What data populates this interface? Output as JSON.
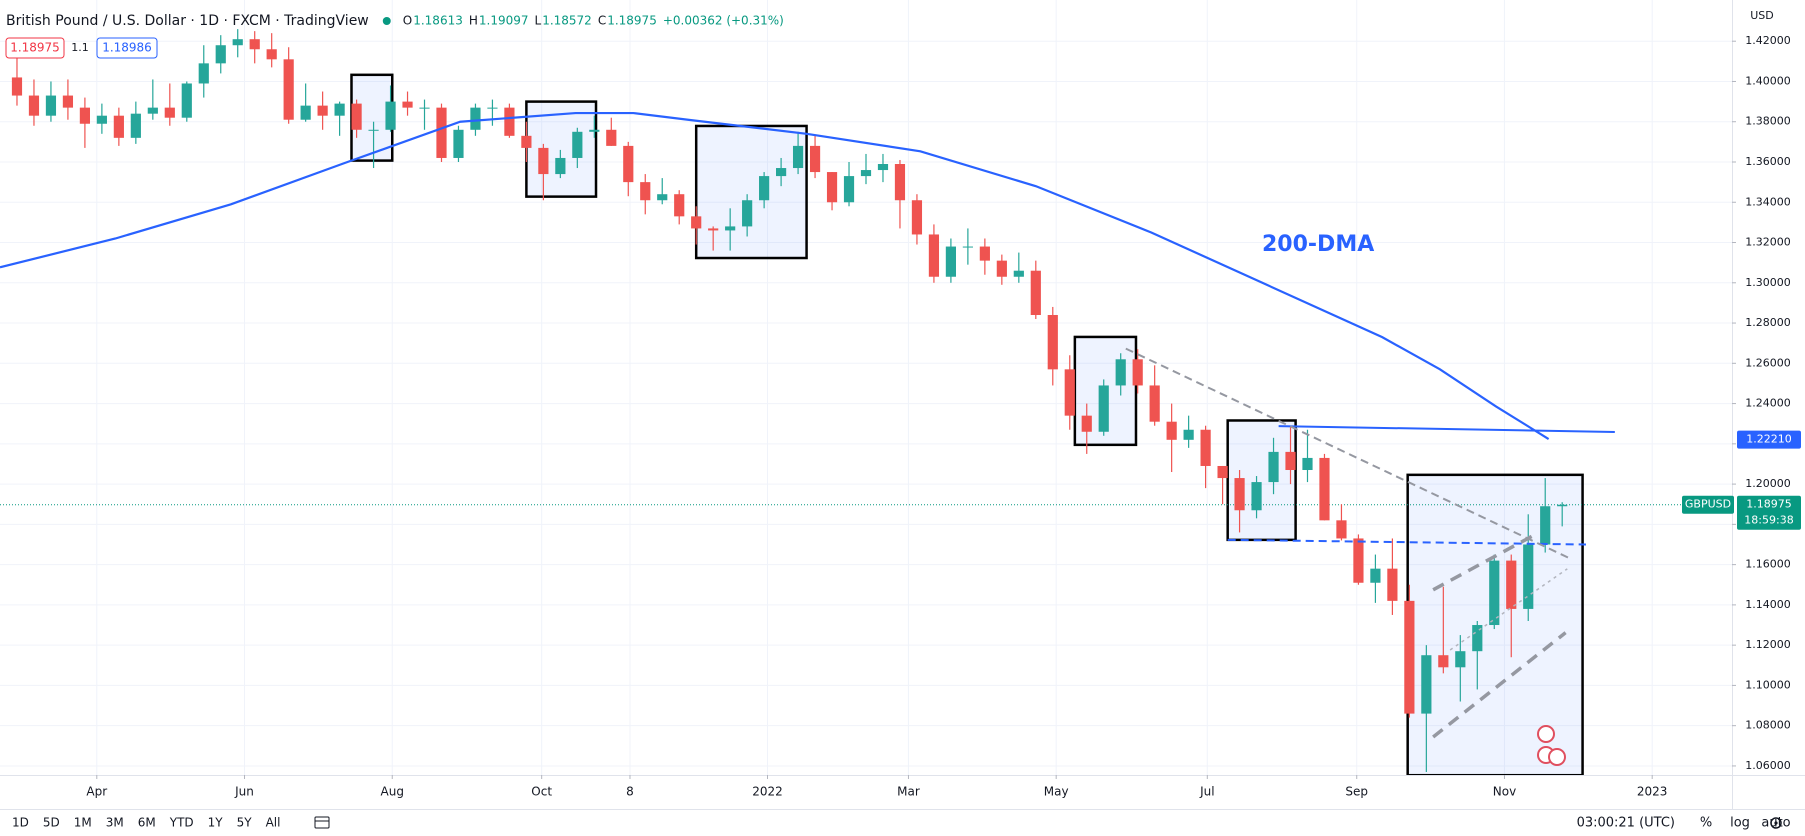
{
  "chart_data": {
    "type": "candlestick",
    "title": "British Pound / U.S. Dollar · 1D · FXCM · TradingView",
    "legend": {
      "open_label": "O",
      "open": 1.18613,
      "high_label": "H",
      "high": 1.19097,
      "low_label": "L",
      "low": 1.18572,
      "close_label": "C",
      "close": 1.18975,
      "change": "+0.00362 (+0.31%)"
    },
    "trade": {
      "sell": 1.18975,
      "spread": 1.1,
      "buy": 1.18986
    },
    "currency": "USD",
    "up_color": "#26a69a",
    "down_color": "#ef5350",
    "open": [
      1.402,
      1.393,
      1.383,
      1.393,
      1.387,
      1.379,
      1.383,
      1.372,
      1.384,
      1.387,
      1.382,
      1.399,
      1.409,
      1.418,
      1.421,
      1.416,
      1.411,
      1.381,
      1.388,
      1.383,
      1.389,
      1.376,
      1.376,
      1.39,
      1.387,
      1.387,
      1.362,
      1.376,
      1.387,
      1.387,
      1.373,
      1.367,
      1.354,
      1.362,
      1.375,
      1.376,
      1.368,
      1.35,
      1.341,
      1.344,
      1.333,
      1.327,
      1.326,
      1.328,
      1.341,
      1.353,
      1.357,
      1.368,
      1.355,
      1.34,
      1.353,
      1.356,
      1.359,
      1.341,
      1.324,
      1.303,
      1.318,
      1.318,
      1.311,
      1.303,
      1.306,
      1.284,
      1.257,
      1.234,
      1.226,
      1.249,
      1.262,
      1.249,
      1.231,
      1.222,
      1.227,
      1.209,
      1.203,
      1.187,
      1.201,
      1.216,
      1.207,
      1.213,
      1.182,
      1.173,
      1.151,
      1.158,
      1.142,
      1.086,
      1.115,
      1.109,
      1.117,
      1.13,
      1.162,
      1.138,
      1.17,
      1.189
    ],
    "high": [
      1.412,
      1.401,
      1.4,
      1.401,
      1.392,
      1.389,
      1.387,
      1.39,
      1.401,
      1.399,
      1.4,
      1.418,
      1.423,
      1.426,
      1.425,
      1.424,
      1.417,
      1.399,
      1.395,
      1.39,
      1.391,
      1.38,
      1.398,
      1.395,
      1.391,
      1.389,
      1.378,
      1.389,
      1.391,
      1.389,
      1.38,
      1.369,
      1.366,
      1.377,
      1.383,
      1.382,
      1.37,
      1.354,
      1.352,
      1.346,
      1.338,
      1.328,
      1.337,
      1.344,
      1.355,
      1.362,
      1.375,
      1.373,
      1.355,
      1.36,
      1.364,
      1.364,
      1.361,
      1.344,
      1.329,
      1.322,
      1.327,
      1.322,
      1.314,
      1.315,
      1.311,
      1.288,
      1.264,
      1.24,
      1.252,
      1.265,
      1.267,
      1.259,
      1.24,
      1.234,
      1.229,
      1.209,
      1.207,
      1.204,
      1.223,
      1.229,
      1.227,
      1.215,
      1.19,
      1.175,
      1.165,
      1.173,
      1.15,
      1.12,
      1.149,
      1.125,
      1.132,
      1.165,
      1.165,
      1.185,
      1.203,
      1.191
    ],
    "low": [
      1.388,
      1.378,
      1.38,
      1.381,
      1.367,
      1.374,
      1.368,
      1.369,
      1.381,
      1.378,
      1.38,
      1.392,
      1.404,
      1.412,
      1.409,
      1.407,
      1.379,
      1.38,
      1.376,
      1.373,
      1.372,
      1.357,
      1.375,
      1.383,
      1.376,
      1.36,
      1.36,
      1.373,
      1.378,
      1.372,
      1.36,
      1.341,
      1.352,
      1.357,
      1.372,
      1.368,
      1.343,
      1.334,
      1.339,
      1.329,
      1.319,
      1.316,
      1.316,
      1.323,
      1.337,
      1.348,
      1.354,
      1.352,
      1.336,
      1.338,
      1.349,
      1.35,
      1.327,
      1.319,
      1.3,
      1.3,
      1.309,
      1.304,
      1.299,
      1.3,
      1.282,
      1.249,
      1.227,
      1.215,
      1.224,
      1.244,
      1.245,
      1.229,
      1.206,
      1.218,
      1.198,
      1.19,
      1.176,
      1.183,
      1.195,
      1.2,
      1.201,
      1.182,
      1.172,
      1.15,
      1.141,
      1.135,
      1.084,
      1.057,
      1.106,
      1.092,
      1.098,
      1.128,
      1.114,
      1.132,
      1.166,
      1.179
    ],
    "close": [
      1.393,
      1.383,
      1.393,
      1.387,
      1.379,
      1.383,
      1.372,
      1.384,
      1.387,
      1.382,
      1.399,
      1.409,
      1.418,
      1.421,
      1.416,
      1.411,
      1.381,
      1.388,
      1.383,
      1.389,
      1.376,
      1.376,
      1.39,
      1.387,
      1.387,
      1.362,
      1.376,
      1.387,
      1.387,
      1.373,
      1.367,
      1.354,
      1.362,
      1.375,
      1.376,
      1.368,
      1.35,
      1.341,
      1.344,
      1.333,
      1.327,
      1.326,
      1.328,
      1.341,
      1.353,
      1.357,
      1.368,
      1.355,
      1.34,
      1.353,
      1.356,
      1.359,
      1.341,
      1.324,
      1.303,
      1.318,
      1.318,
      1.311,
      1.303,
      1.306,
      1.284,
      1.257,
      1.234,
      1.226,
      1.249,
      1.262,
      1.249,
      1.231,
      1.222,
      1.227,
      1.209,
      1.203,
      1.187,
      1.201,
      1.216,
      1.207,
      1.213,
      1.182,
      1.173,
      1.151,
      1.158,
      1.142,
      1.086,
      1.115,
      1.109,
      1.117,
      1.13,
      1.162,
      1.138,
      1.17,
      1.189,
      1.18975
    ],
    "ma": {
      "color": "#2962ff",
      "x": [
        -1,
        5.8,
        12.6,
        19.3,
        26.1,
        32.9,
        36.3,
        39.7,
        46.5,
        53.2,
        60.0,
        66.8,
        73.6,
        80.4,
        83.8,
        87.1,
        90.2
      ],
      "values": [
        1.3077,
        1.322,
        1.339,
        1.3595,
        1.38,
        1.3843,
        1.3843,
        1.3808,
        1.374,
        1.3653,
        1.348,
        1.325,
        1.299,
        1.273,
        1.257,
        1.2386,
        1.2224
      ]
    },
    "annotation": "200-DMA",
    "boxes": [
      {
        "x": [
          19.7,
          22.1
        ],
        "y": [
          1.3607,
          1.4033
        ]
      },
      {
        "x": [
          30.0,
          34.1
        ],
        "y": [
          1.3428,
          1.39
        ]
      },
      {
        "x": [
          40.0,
          46.5
        ],
        "y": [
          1.3123,
          1.3779
        ]
      },
      {
        "x": [
          62.3,
          65.9
        ],
        "y": [
          1.2195,
          1.2731
        ]
      },
      {
        "x": [
          71.3,
          75.3
        ],
        "y": [
          1.1723,
          1.2316
        ]
      },
      {
        "x": [
          81.9,
          92.2
        ],
        "y": [
          1.0554,
          1.2046
        ]
      }
    ],
    "lines": [
      {
        "x": [
          74.3,
          94.1
        ],
        "y": [
          1.2288,
          1.2259
        ],
        "color": "#2962ff",
        "style": "solid"
      },
      {
        "x": [
          71.3,
          92.4
        ],
        "y": [
          1.1723,
          1.17
        ],
        "color": "#2962ff",
        "style": "dashed"
      },
      {
        "x": [
          65.3,
          91.6
        ],
        "y": [
          1.2673,
          1.1625
        ],
        "color": "#9598a1",
        "style": "dashed"
      },
      {
        "x": [
          83.4,
          89.2
        ],
        "y": [
          1.1475,
          1.174
        ],
        "color": "#9598a1",
        "style": "thick"
      },
      {
        "x": [
          83.4,
          91.2
        ],
        "y": [
          1.0744,
          1.1262
        ],
        "color": "#9598a1",
        "style": "thick"
      },
      {
        "x": [
          84.4,
          91.3
        ],
        "y": [
          1.1176,
          1.1579
        ],
        "color": "#b2b5be",
        "style": "dotted"
      }
    ],
    "line_label": {
      "value": 1.2221,
      "label": "1.22210"
    },
    "symbol": "GBPUSD",
    "last_price": 1.18975,
    "countdown": "18:59:38",
    "xlim": [
      -1,
      101
    ],
    "ylim": [
      1.0555,
      1.4355
    ],
    "xticks": [
      {
        "value": 4.7,
        "label": "Apr"
      },
      {
        "value": 13.4,
        "label": "Jun"
      },
      {
        "value": 22.1,
        "label": "Aug"
      },
      {
        "value": 30.9,
        "label": "Oct"
      },
      {
        "value": 36.1,
        "label": "8"
      },
      {
        "value": 44.2,
        "label": "2022"
      },
      {
        "value": 52.5,
        "label": "Mar"
      },
      {
        "value": 61.2,
        "label": "May"
      },
      {
        "value": 70.1,
        "label": "Jul"
      },
      {
        "value": 78.9,
        "label": "Sep"
      },
      {
        "value": 87.6,
        "label": "Nov"
      },
      {
        "value": 96.3,
        "label": "2023"
      }
    ],
    "yticks": [
      {
        "value": 1.06,
        "label": "1.06000"
      },
      {
        "value": 1.08,
        "label": "1.08000"
      },
      {
        "value": 1.1,
        "label": "1.10000"
      },
      {
        "value": 1.12,
        "label": "1.12000"
      },
      {
        "value": 1.14,
        "label": "1.14000"
      },
      {
        "value": 1.16,
        "label": "1.16000"
      },
      {
        "value": 1.18,
        "label": "1.18000"
      },
      {
        "value": 1.2,
        "label": "1.20000"
      },
      {
        "value": 1.22,
        "label": "1.22000"
      },
      {
        "value": 1.24,
        "label": "1.24000"
      },
      {
        "value": 1.26,
        "label": "1.26000"
      },
      {
        "value": 1.28,
        "label": "1.28000"
      },
      {
        "value": 1.3,
        "label": "1.30000"
      },
      {
        "value": 1.32,
        "label": "1.32000"
      },
      {
        "value": 1.34,
        "label": "1.34000"
      },
      {
        "value": 1.36,
        "label": "1.36000"
      },
      {
        "value": 1.38,
        "label": "1.38000"
      },
      {
        "value": 1.4,
        "label": "1.40000"
      },
      {
        "value": 1.42,
        "label": "1.42000"
      }
    ],
    "grid": true,
    "toolbar": {
      "ranges": [
        "1D",
        "5D",
        "1M",
        "3M",
        "6M",
        "YTD",
        "1Y",
        "5Y",
        "All"
      ],
      "time": "03:00:21 (UTC)",
      "scale_buttons": [
        "%",
        "log",
        "auto"
      ]
    }
  }
}
